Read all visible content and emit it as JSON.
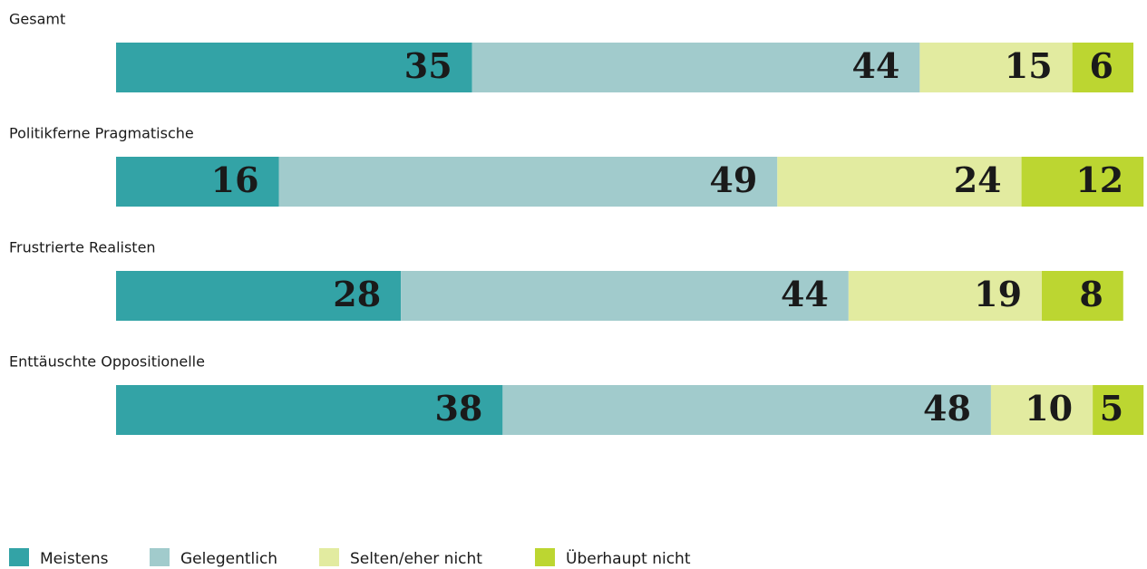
{
  "chart_data": {
    "type": "stacked-bar",
    "categories": [
      "Gesamt",
      "Politikferne Pragmatische",
      "Frustrierte Realisten",
      "Enttäuschte Oppositionelle"
    ],
    "series": [
      {
        "name": "Meistens",
        "color": "#33a3a6",
        "values": [
          35,
          16,
          28,
          38
        ]
      },
      {
        "name": "Gelegentlich",
        "color": "#a1cbcc",
        "values": [
          44,
          49,
          44,
          48
        ]
      },
      {
        "name": "Selten/eher nicht",
        "color": "#e2eba0",
        "values": [
          15,
          24,
          19,
          10
        ]
      },
      {
        "name": "Überhaupt nicht",
        "color": "#bcd631",
        "values": [
          6,
          12,
          8,
          5
        ]
      }
    ],
    "xlim": [
      0,
      100
    ]
  }
}
